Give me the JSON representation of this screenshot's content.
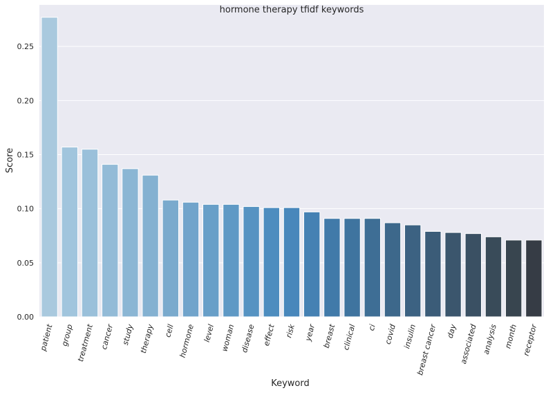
{
  "chart_data": {
    "type": "bar",
    "title": "hormone therapy tfidf keywords",
    "xlabel": "Keyword",
    "ylabel": "Score",
    "ylim": [
      0,
      0.2885
    ],
    "yticks": [
      "0.00",
      "0.05",
      "0.10",
      "0.15",
      "0.20",
      "0.25"
    ],
    "grid": true,
    "categories": [
      "patient",
      "group",
      "treatment",
      "cancer",
      "study",
      "therapy",
      "cell",
      "hormone",
      "level",
      "woman",
      "disease",
      "effect",
      "risk",
      "year",
      "breast",
      "clinical",
      "ci",
      "covid",
      "insulin",
      "breast cancer",
      "day",
      "associated",
      "analysis",
      "month",
      "receptor"
    ],
    "values": [
      0.277,
      0.157,
      0.155,
      0.141,
      0.137,
      0.131,
      0.108,
      0.106,
      0.104,
      0.104,
      0.102,
      0.101,
      0.101,
      0.097,
      0.091,
      0.091,
      0.091,
      0.087,
      0.085,
      0.079,
      0.078,
      0.077,
      0.074,
      0.071,
      0.071
    ],
    "colors": [
      "#a9c9de",
      "#a1c5dd",
      "#9ac0da",
      "#93bbd7",
      "#8bb6d4",
      "#84b1d1",
      "#7aaacd",
      "#71a4cb",
      "#689fc8",
      "#5f99c5",
      "#5693c2",
      "#4d8dbf",
      "#4887bb",
      "#4581b3",
      "#417aa9",
      "#3f749f",
      "#3e6e95",
      "#3d688b",
      "#3c6282",
      "#3b5c78",
      "#3b566d",
      "#3a5063",
      "#394b59",
      "#38454f",
      "#363c45"
    ]
  }
}
